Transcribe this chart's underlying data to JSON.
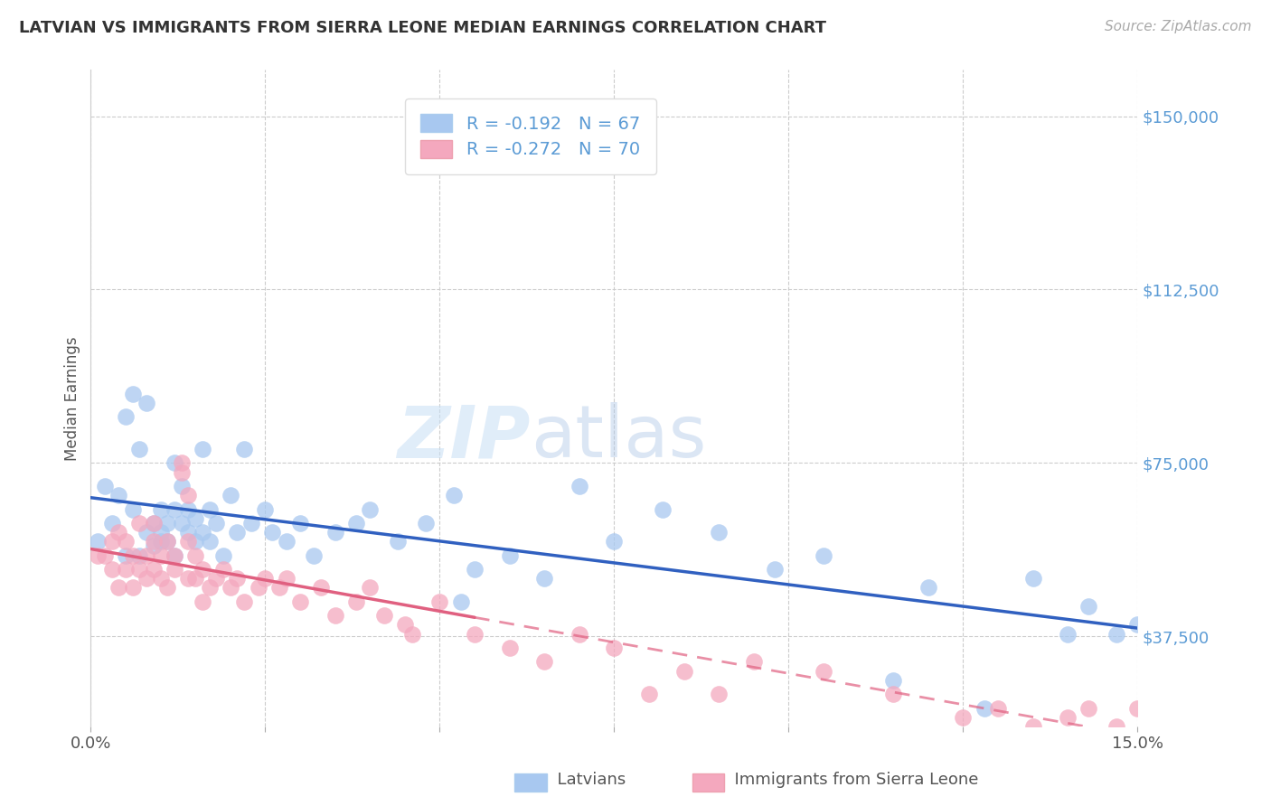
{
  "title": "LATVIAN VS IMMIGRANTS FROM SIERRA LEONE MEDIAN EARNINGS CORRELATION CHART",
  "source": "Source: ZipAtlas.com",
  "ylabel": "Median Earnings",
  "yticks": [
    37500,
    75000,
    112500,
    150000
  ],
  "ytick_labels": [
    "$37,500",
    "$75,000",
    "$112,500",
    "$150,000"
  ],
  "xlim": [
    0.0,
    0.15
  ],
  "ylim": [
    18000,
    160000
  ],
  "latvian_R": -0.192,
  "latvian_N": 67,
  "sierra_leone_R": -0.272,
  "sierra_leone_N": 70,
  "latvian_color": "#A8C8F0",
  "sierra_leone_color": "#F4A8BE",
  "latvian_line_color": "#3060C0",
  "sierra_leone_line_color": "#E06080",
  "watermark_zip": "ZIP",
  "watermark_atlas": "atlas",
  "background_color": "#FFFFFF",
  "grid_color": "#CCCCCC",
  "latvian_x": [
    0.001,
    0.002,
    0.003,
    0.004,
    0.005,
    0.005,
    0.006,
    0.006,
    0.007,
    0.007,
    0.008,
    0.008,
    0.009,
    0.009,
    0.01,
    0.01,
    0.01,
    0.011,
    0.011,
    0.012,
    0.012,
    0.012,
    0.013,
    0.013,
    0.014,
    0.014,
    0.015,
    0.015,
    0.016,
    0.016,
    0.017,
    0.017,
    0.018,
    0.019,
    0.02,
    0.021,
    0.022,
    0.023,
    0.025,
    0.026,
    0.028,
    0.03,
    0.032,
    0.035,
    0.038,
    0.04,
    0.044,
    0.048,
    0.052,
    0.055,
    0.06,
    0.065,
    0.07,
    0.075,
    0.082,
    0.09,
    0.098,
    0.105,
    0.115,
    0.12,
    0.128,
    0.135,
    0.14,
    0.143,
    0.147,
    0.15,
    0.053
  ],
  "latvian_y": [
    58000,
    70000,
    62000,
    68000,
    55000,
    85000,
    65000,
    90000,
    78000,
    55000,
    60000,
    88000,
    62000,
    57000,
    60000,
    58000,
    65000,
    62000,
    58000,
    75000,
    65000,
    55000,
    70000,
    62000,
    60000,
    65000,
    58000,
    63000,
    78000,
    60000,
    65000,
    58000,
    62000,
    55000,
    68000,
    60000,
    78000,
    62000,
    65000,
    60000,
    58000,
    62000,
    55000,
    60000,
    62000,
    65000,
    58000,
    62000,
    68000,
    52000,
    55000,
    50000,
    70000,
    58000,
    65000,
    60000,
    52000,
    55000,
    28000,
    48000,
    22000,
    50000,
    38000,
    44000,
    38000,
    40000,
    45000
  ],
  "sierra_leone_x": [
    0.001,
    0.002,
    0.003,
    0.003,
    0.004,
    0.004,
    0.005,
    0.005,
    0.006,
    0.006,
    0.007,
    0.007,
    0.008,
    0.008,
    0.009,
    0.009,
    0.009,
    0.01,
    0.01,
    0.011,
    0.011,
    0.012,
    0.012,
    0.013,
    0.013,
    0.014,
    0.014,
    0.014,
    0.015,
    0.015,
    0.016,
    0.016,
    0.017,
    0.018,
    0.019,
    0.02,
    0.021,
    0.022,
    0.024,
    0.025,
    0.027,
    0.028,
    0.03,
    0.033,
    0.035,
    0.038,
    0.04,
    0.042,
    0.045,
    0.05,
    0.055,
    0.06,
    0.065,
    0.07,
    0.075,
    0.08,
    0.085,
    0.09,
    0.095,
    0.105,
    0.115,
    0.125,
    0.13,
    0.135,
    0.14,
    0.143,
    0.147,
    0.15,
    0.153,
    0.046
  ],
  "sierra_leone_y": [
    55000,
    55000,
    52000,
    58000,
    48000,
    60000,
    52000,
    58000,
    55000,
    48000,
    52000,
    62000,
    55000,
    50000,
    58000,
    52000,
    62000,
    55000,
    50000,
    58000,
    48000,
    52000,
    55000,
    75000,
    73000,
    68000,
    50000,
    58000,
    50000,
    55000,
    52000,
    45000,
    48000,
    50000,
    52000,
    48000,
    50000,
    45000,
    48000,
    50000,
    48000,
    50000,
    45000,
    48000,
    42000,
    45000,
    48000,
    42000,
    40000,
    45000,
    38000,
    35000,
    32000,
    38000,
    35000,
    25000,
    30000,
    25000,
    32000,
    30000,
    25000,
    20000,
    22000,
    18000,
    20000,
    22000,
    18000,
    22000,
    25000,
    38000
  ]
}
